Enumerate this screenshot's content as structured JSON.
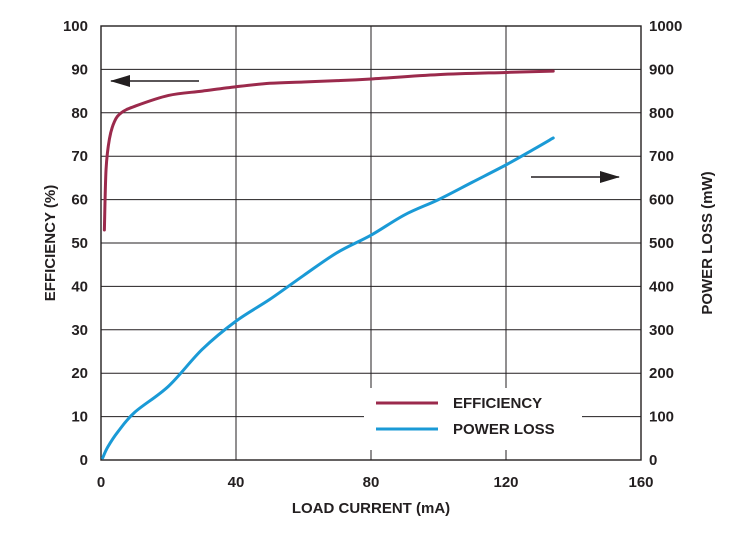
{
  "chart_data": {
    "type": "line",
    "xlabel": "LOAD CURRENT (mA)",
    "ylabel": "EFFICIENCY (%)",
    "y2label": "POWER LOSS (mW)",
    "xlim": [
      0,
      160
    ],
    "ylim": [
      0,
      100
    ],
    "y2lim": [
      0,
      1000
    ],
    "xticks": [
      "0",
      "40",
      "80",
      "120",
      "160"
    ],
    "yticks": [
      "0",
      "10",
      "20",
      "30",
      "40",
      "50",
      "60",
      "70",
      "80",
      "90",
      "100"
    ],
    "y2ticks": [
      "0",
      "100",
      "200",
      "300",
      "400",
      "500",
      "600",
      "700",
      "800",
      "900",
      "1000"
    ],
    "grid": true,
    "legend_position": "bottom-right",
    "series": [
      {
        "name": "EFFICIENCY",
        "axis": "left",
        "color": "#9b2a4c",
        "points": [
          [
            1,
            53
          ],
          [
            1.5,
            67
          ],
          [
            2.5,
            74
          ],
          [
            4,
            78
          ],
          [
            6,
            80
          ],
          [
            10,
            81.5
          ],
          [
            20,
            84
          ],
          [
            30,
            85
          ],
          [
            40,
            86
          ],
          [
            50,
            86.8
          ],
          [
            60,
            87.1
          ],
          [
            70,
            87.4
          ],
          [
            80,
            87.8
          ],
          [
            100,
            88.8
          ],
          [
            120,
            89.3
          ],
          [
            134,
            89.6
          ]
        ]
      },
      {
        "name": "POWER LOSS",
        "axis": "right",
        "color": "#1a9ad6",
        "points": [
          [
            0.5,
            5
          ],
          [
            2,
            30
          ],
          [
            5,
            65
          ],
          [
            10,
            110
          ],
          [
            20,
            170
          ],
          [
            30,
            255
          ],
          [
            40,
            320
          ],
          [
            50,
            370
          ],
          [
            60,
            425
          ],
          [
            70,
            478
          ],
          [
            80,
            518
          ],
          [
            90,
            565
          ],
          [
            100,
            600
          ],
          [
            110,
            640
          ],
          [
            120,
            680
          ],
          [
            128,
            715
          ],
          [
            134,
            742
          ]
        ]
      }
    ],
    "annotations": [
      {
        "type": "arrow",
        "direction": "left",
        "points_to": "left-axis",
        "series": "EFFICIENCY"
      },
      {
        "type": "arrow",
        "direction": "right",
        "points_to": "right-axis",
        "series": "POWER LOSS"
      }
    ]
  }
}
